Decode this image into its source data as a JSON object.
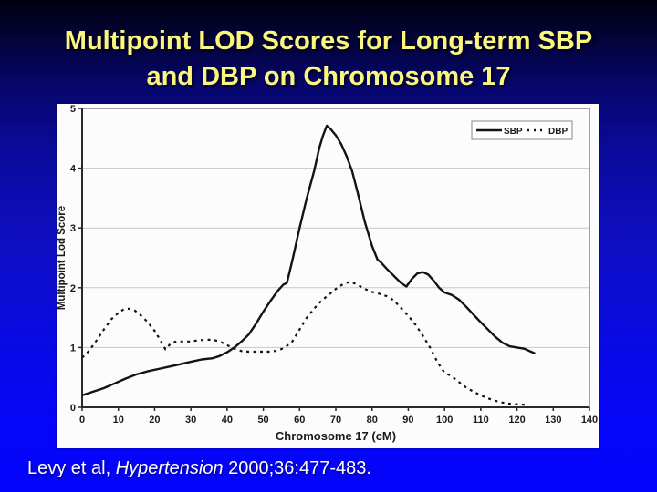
{
  "slide": {
    "title": "Multipoint LOD Scores for Long-term SBP and DBP on Chromosome 17",
    "citation": {
      "prefix": "Levy et al, ",
      "journal": "Hypertension",
      "suffix": " 2000;36:477-483."
    }
  },
  "colors": {
    "background_top": "#000012",
    "background_bottom": "#0404fa",
    "title_text": "#fbf77e",
    "citation_text": "#ffffff",
    "panel_background": "#fcfcfc",
    "curve_color": "#131313",
    "grid_color": "#c7c7c7",
    "axis_color": "#2a2a2a"
  },
  "chart_data": {
    "type": "line",
    "title": "",
    "xlabel": "Chromosome 17 (cM)",
    "ylabel": "Multipoint Lod Score",
    "xlim": [
      0,
      140
    ],
    "ylim": [
      0,
      5
    ],
    "x_ticks": [
      0,
      10,
      20,
      30,
      40,
      50,
      60,
      70,
      80,
      90,
      100,
      110,
      120,
      130,
      140
    ],
    "y_ticks": [
      0,
      1,
      2,
      3,
      4,
      5
    ],
    "y_gridlines": [
      1,
      2,
      3,
      4
    ],
    "grid": "horizontal",
    "legend_position": "top-right",
    "series": [
      {
        "name": "SBP",
        "line_style": "solid",
        "points": [
          [
            0,
            0.2
          ],
          [
            3,
            0.26
          ],
          [
            6,
            0.32
          ],
          [
            9,
            0.4
          ],
          [
            12,
            0.48
          ],
          [
            15,
            0.55
          ],
          [
            18,
            0.6
          ],
          [
            21,
            0.64
          ],
          [
            24,
            0.68
          ],
          [
            27,
            0.72
          ],
          [
            30,
            0.76
          ],
          [
            33,
            0.8
          ],
          [
            36,
            0.82
          ],
          [
            38,
            0.86
          ],
          [
            40,
            0.92
          ],
          [
            42,
            1.0
          ],
          [
            44,
            1.1
          ],
          [
            46,
            1.22
          ],
          [
            48,
            1.4
          ],
          [
            50,
            1.6
          ],
          [
            52,
            1.78
          ],
          [
            54,
            1.95
          ],
          [
            55.5,
            2.05
          ],
          [
            56.5,
            2.08
          ],
          [
            58,
            2.45
          ],
          [
            60,
            3.0
          ],
          [
            62,
            3.5
          ],
          [
            64,
            3.95
          ],
          [
            65.5,
            4.35
          ],
          [
            66.5,
            4.55
          ],
          [
            67.5,
            4.71
          ],
          [
            68.5,
            4.66
          ],
          [
            70,
            4.55
          ],
          [
            71.5,
            4.4
          ],
          [
            73,
            4.2
          ],
          [
            74.5,
            3.95
          ],
          [
            76,
            3.6
          ],
          [
            78,
            3.1
          ],
          [
            80,
            2.7
          ],
          [
            81.5,
            2.47
          ],
          [
            82.5,
            2.42
          ],
          [
            84,
            2.32
          ],
          [
            86,
            2.2
          ],
          [
            88,
            2.08
          ],
          [
            89.5,
            2.02
          ],
          [
            91,
            2.15
          ],
          [
            92.5,
            2.24
          ],
          [
            94,
            2.26
          ],
          [
            95.5,
            2.22
          ],
          [
            97,
            2.12
          ],
          [
            98.5,
            2.0
          ],
          [
            100,
            1.92
          ],
          [
            102,
            1.88
          ],
          [
            104,
            1.8
          ],
          [
            106,
            1.68
          ],
          [
            108,
            1.55
          ],
          [
            110,
            1.42
          ],
          [
            112,
            1.3
          ],
          [
            114,
            1.18
          ],
          [
            116,
            1.08
          ],
          [
            118,
            1.02
          ],
          [
            120,
            1.0
          ],
          [
            122,
            0.98
          ],
          [
            125,
            0.9
          ]
        ]
      },
      {
        "name": "DBP",
        "line_style": "dashed",
        "points": [
          [
            0,
            0.83
          ],
          [
            2,
            0.95
          ],
          [
            4,
            1.12
          ],
          [
            6,
            1.3
          ],
          [
            8,
            1.47
          ],
          [
            10,
            1.58
          ],
          [
            11.5,
            1.64
          ],
          [
            13,
            1.65
          ],
          [
            14.5,
            1.62
          ],
          [
            16,
            1.55
          ],
          [
            18,
            1.43
          ],
          [
            20,
            1.28
          ],
          [
            21.5,
            1.13
          ],
          [
            23,
            0.97
          ],
          [
            24.5,
            1.07
          ],
          [
            26,
            1.1
          ],
          [
            28,
            1.1
          ],
          [
            30,
            1.1
          ],
          [
            32,
            1.12
          ],
          [
            34,
            1.13
          ],
          [
            36,
            1.13
          ],
          [
            38,
            1.1
          ],
          [
            40,
            1.04
          ],
          [
            42,
            0.98
          ],
          [
            44,
            0.94
          ],
          [
            46,
            0.93
          ],
          [
            48,
            0.93
          ],
          [
            50,
            0.93
          ],
          [
            52,
            0.93
          ],
          [
            54,
            0.95
          ],
          [
            56,
            1.0
          ],
          [
            58,
            1.1
          ],
          [
            60,
            1.3
          ],
          [
            62,
            1.5
          ],
          [
            64,
            1.65
          ],
          [
            66,
            1.78
          ],
          [
            68,
            1.88
          ],
          [
            70,
            1.98
          ],
          [
            72,
            2.06
          ],
          [
            74,
            2.1
          ],
          [
            76,
            2.05
          ],
          [
            78,
            1.98
          ],
          [
            80,
            1.93
          ],
          [
            82,
            1.9
          ],
          [
            84,
            1.86
          ],
          [
            86,
            1.79
          ],
          [
            88,
            1.66
          ],
          [
            90,
            1.53
          ],
          [
            92,
            1.38
          ],
          [
            94,
            1.2
          ],
          [
            96,
            1.0
          ],
          [
            98,
            0.76
          ],
          [
            100,
            0.58
          ],
          [
            102,
            0.52
          ],
          [
            104,
            0.42
          ],
          [
            106,
            0.33
          ],
          [
            108,
            0.26
          ],
          [
            110,
            0.2
          ],
          [
            112,
            0.15
          ],
          [
            114,
            0.11
          ],
          [
            116,
            0.08
          ],
          [
            118,
            0.06
          ],
          [
            120,
            0.05
          ],
          [
            123,
            0.04
          ]
        ]
      }
    ]
  }
}
